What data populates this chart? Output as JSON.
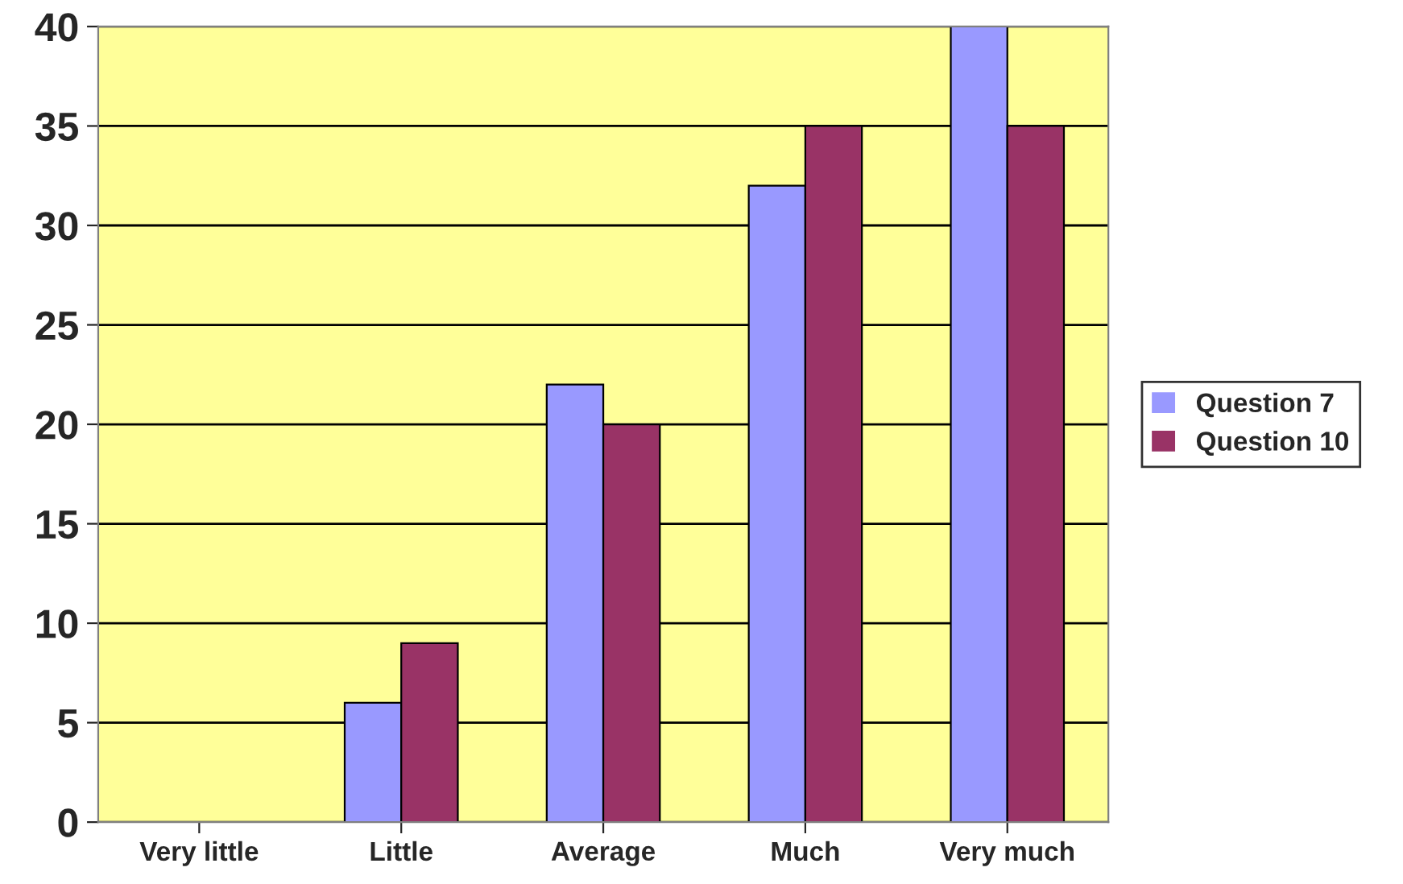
{
  "chart_data": {
    "type": "bar",
    "categories": [
      "Very little",
      "Little",
      "Average",
      "Much",
      "Very much"
    ],
    "series": [
      {
        "name": "Question 7",
        "color": "#9999ff",
        "values": [
          0,
          6,
          22,
          32,
          40
        ]
      },
      {
        "name": "Question 10",
        "color": "#993366",
        "values": [
          0,
          9,
          20,
          35,
          35
        ]
      }
    ],
    "ylim": [
      0,
      40
    ],
    "yticks": [
      0,
      5,
      10,
      15,
      20,
      25,
      30,
      35,
      40
    ],
    "grid": "y",
    "legend": "right"
  }
}
